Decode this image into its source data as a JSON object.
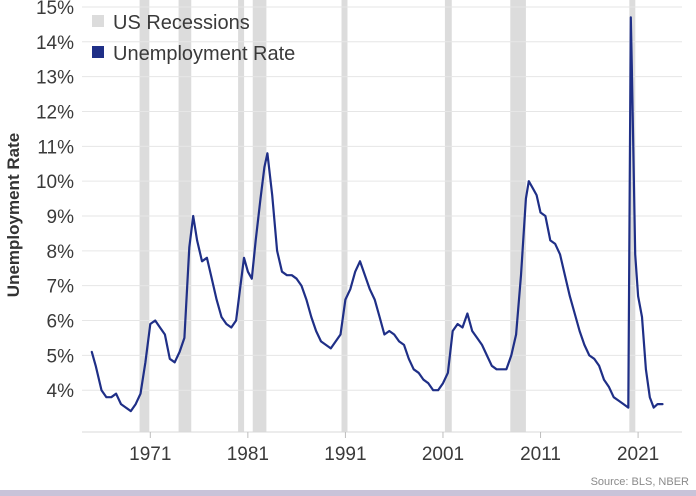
{
  "chart_data": {
    "type": "line",
    "title": "",
    "xlabel": "",
    "ylabel": "Unemployment Rate",
    "source": "Source: BLS, NBER",
    "ylim": [
      2.8,
      15.2
    ],
    "xlim": [
      1964.0,
      2025.5
    ],
    "y_ticks": [
      4,
      5,
      6,
      7,
      8,
      9,
      10,
      11,
      12,
      13,
      14,
      15
    ],
    "y_tick_labels": [
      "4%",
      "5%",
      "6%",
      "7%",
      "8%",
      "9%",
      "10%",
      "11%",
      "12%",
      "13%",
      "14%",
      "15%"
    ],
    "x_ticks": [
      1971,
      1981,
      1991,
      2001,
      2011,
      2021
    ],
    "x_tick_labels": [
      "1971",
      "1981",
      "1991",
      "2001",
      "2011",
      "2021"
    ],
    "legend": {
      "position": "top-left",
      "items": [
        {
          "label": "US Recessions",
          "color": "#dcdcdc"
        },
        {
          "label": "Unemployment Rate",
          "color": "#1f2f87"
        }
      ]
    },
    "colors": {
      "line": "#1f2f87",
      "recession": "#dcdcdc",
      "grid": "#e6e6e6"
    },
    "recessions": [
      {
        "start": 1969.9,
        "end": 1970.9
      },
      {
        "start": 1973.9,
        "end": 1975.2
      },
      {
        "start": 1980.0,
        "end": 1980.5
      },
      {
        "start": 1981.5,
        "end": 1982.9
      },
      {
        "start": 1990.6,
        "end": 1991.2
      },
      {
        "start": 2001.2,
        "end": 2001.9
      },
      {
        "start": 2007.9,
        "end": 2009.5
      },
      {
        "start": 2020.1,
        "end": 2020.4
      }
    ],
    "series": [
      {
        "name": "Unemployment Rate",
        "x": [
          1965.0,
          1965.4,
          1966.0,
          1966.5,
          1967.0,
          1967.5,
          1968.0,
          1968.5,
          1969.0,
          1969.5,
          1970.0,
          1970.5,
          1971.0,
          1971.5,
          1972.0,
          1972.5,
          1973.0,
          1973.5,
          1974.0,
          1974.5,
          1975.0,
          1975.4,
          1975.8,
          1976.3,
          1976.8,
          1977.3,
          1977.8,
          1978.3,
          1978.8,
          1979.3,
          1979.8,
          1980.2,
          1980.6,
          1981.0,
          1981.4,
          1981.8,
          1982.3,
          1982.7,
          1983.0,
          1983.5,
          1984.0,
          1984.5,
          1985.0,
          1985.5,
          1986.0,
          1986.5,
          1987.0,
          1987.5,
          1988.0,
          1988.5,
          1989.0,
          1989.5,
          1990.0,
          1990.5,
          1991.0,
          1991.5,
          1992.0,
          1992.5,
          1993.0,
          1993.5,
          1994.0,
          1994.5,
          1995.0,
          1995.5,
          1996.0,
          1996.5,
          1997.0,
          1997.5,
          1998.0,
          1998.5,
          1999.0,
          1999.5,
          2000.0,
          2000.5,
          2001.0,
          2001.5,
          2002.0,
          2002.5,
          2003.0,
          2003.5,
          2004.0,
          2004.5,
          2005.0,
          2005.5,
          2006.0,
          2006.5,
          2007.0,
          2007.5,
          2008.0,
          2008.5,
          2009.0,
          2009.5,
          2009.8,
          2010.2,
          2010.6,
          2011.0,
          2011.5,
          2012.0,
          2012.5,
          2013.0,
          2013.5,
          2014.0,
          2014.5,
          2015.0,
          2015.5,
          2016.0,
          2016.5,
          2017.0,
          2017.5,
          2018.0,
          2018.5,
          2019.0,
          2019.5,
          2020.0,
          2020.25,
          2020.35,
          2020.5,
          2020.7,
          2021.0,
          2021.4,
          2021.8,
          2022.2,
          2022.6,
          2023.0,
          2023.5
        ],
        "values": [
          5.1,
          4.7,
          4.0,
          3.8,
          3.8,
          3.9,
          3.6,
          3.5,
          3.4,
          3.6,
          3.9,
          4.8,
          5.9,
          6.0,
          5.8,
          5.6,
          4.9,
          4.8,
          5.1,
          5.5,
          8.1,
          9.0,
          8.3,
          7.7,
          7.8,
          7.2,
          6.6,
          6.1,
          5.9,
          5.8,
          6.0,
          6.9,
          7.8,
          7.4,
          7.2,
          8.3,
          9.5,
          10.4,
          10.8,
          9.6,
          8.0,
          7.4,
          7.3,
          7.3,
          7.2,
          7.0,
          6.6,
          6.1,
          5.7,
          5.4,
          5.3,
          5.2,
          5.4,
          5.6,
          6.6,
          6.9,
          7.4,
          7.7,
          7.3,
          6.9,
          6.6,
          6.1,
          5.6,
          5.7,
          5.6,
          5.4,
          5.3,
          4.9,
          4.6,
          4.5,
          4.3,
          4.2,
          4.0,
          4.0,
          4.2,
          4.5,
          5.7,
          5.9,
          5.8,
          6.2,
          5.7,
          5.5,
          5.3,
          5.0,
          4.7,
          4.6,
          4.6,
          4.6,
          5.0,
          5.6,
          7.3,
          9.5,
          10.0,
          9.8,
          9.6,
          9.1,
          9.0,
          8.3,
          8.2,
          7.9,
          7.3,
          6.7,
          6.2,
          5.7,
          5.3,
          5.0,
          4.9,
          4.7,
          4.3,
          4.1,
          3.8,
          3.7,
          3.6,
          3.5,
          14.7,
          13.3,
          11.1,
          7.9,
          6.7,
          6.1,
          4.6,
          3.8,
          3.5,
          3.6,
          3.6
        ]
      }
    ]
  }
}
